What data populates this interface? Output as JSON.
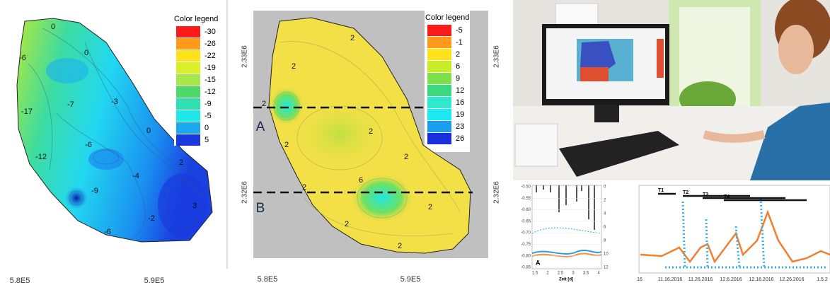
{
  "left_map": {
    "legend_title": "Color legend",
    "legend": [
      {
        "value": -30,
        "color": "#ff1a1a"
      },
      {
        "value": -26,
        "color": "#ff9a1a"
      },
      {
        "value": -22,
        "color": "#ffe21a"
      },
      {
        "value": -19,
        "color": "#d9ef2a"
      },
      {
        "value": -15,
        "color": "#a6e84a"
      },
      {
        "value": -12,
        "color": "#4fd86a"
      },
      {
        "value": -9,
        "color": "#2fe0b0"
      },
      {
        "value": -5,
        "color": "#1ee8e8"
      },
      {
        "value": 0,
        "color": "#1aa8f0"
      },
      {
        "value": 5,
        "color": "#1a3ae0"
      }
    ],
    "contour_labels": [
      0,
      0,
      -6,
      -17,
      -7,
      -3,
      0,
      -6,
      -12,
      -4,
      -9,
      2,
      3,
      -2,
      -6
    ],
    "x_ticks": [
      "5.8E5",
      "5.9E5"
    ]
  },
  "middle_map": {
    "legend_title": "Color legend",
    "legend": [
      {
        "value": -5,
        "color": "#ff1a1a"
      },
      {
        "value": -1,
        "color": "#ff9a1a"
      },
      {
        "value": 2,
        "color": "#ffe21a"
      },
      {
        "value": 6,
        "color": "#c8ec2a"
      },
      {
        "value": 9,
        "color": "#7ce04a"
      },
      {
        "value": 12,
        "color": "#3cd880"
      },
      {
        "value": 16,
        "color": "#2ee8d0"
      },
      {
        "value": 19,
        "color": "#1ee8f0"
      },
      {
        "value": 23,
        "color": "#1a9ef0"
      },
      {
        "value": 26,
        "color": "#1a2ee0"
      }
    ],
    "contour_labels": [
      2,
      2,
      2,
      2,
      2,
      2,
      6,
      2,
      2,
      2,
      2
    ],
    "x_ticks": [
      "5.8E5",
      "5.9E5"
    ],
    "y_ticks": [
      "2.33E6",
      "2.32E6"
    ],
    "section_labels": [
      "A",
      "B"
    ]
  },
  "rainfall_chart": {
    "y_ticks": [
      "-0.50",
      "-0.55",
      "-0.60",
      "-0.65",
      "-0.70",
      "-0.75",
      "-0.80",
      "-0.85"
    ],
    "y2_ticks": [
      0,
      2,
      4,
      6,
      8,
      10,
      12
    ],
    "x_ticks": [
      "1.5",
      "2",
      "2.5",
      "3",
      "3.5",
      "4"
    ],
    "x_label": "Zeit [d]",
    "panel_label": "A"
  },
  "time_chart": {
    "periods": [
      "T1",
      "T2",
      "T3",
      "T4"
    ],
    "x_ticks": [
      "16",
      "11.16.2016",
      "11.26.2016",
      "12.6.2016",
      "12.16.2016",
      "12.26.2016",
      "1.5.2"
    ]
  }
}
